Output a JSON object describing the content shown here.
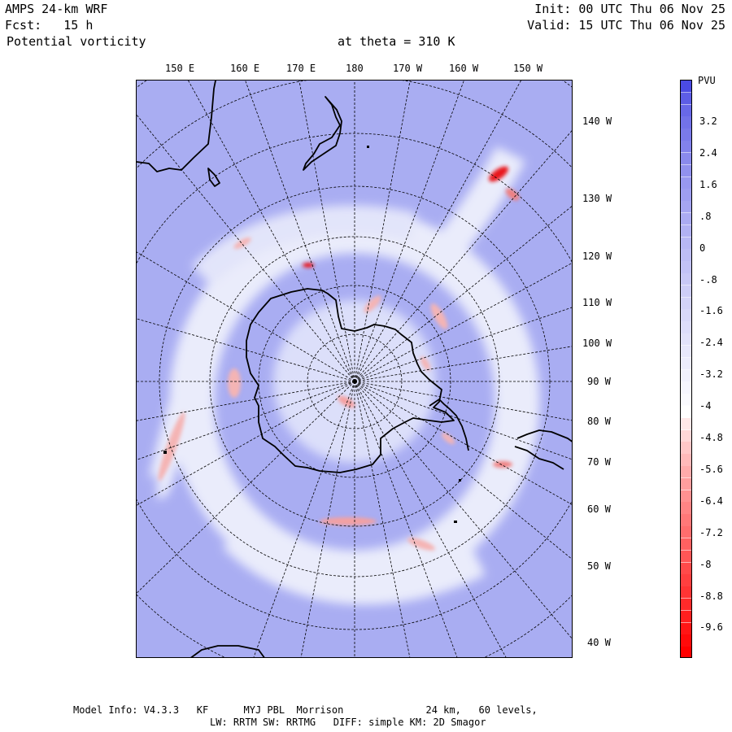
{
  "header": {
    "model": "AMPS 24-km WRF",
    "forecast": "Fcst:   15 h",
    "field": "Potential vorticity",
    "level": "at theta = 310 K",
    "init": "Init: 00 UTC Thu 06 Nov 25",
    "valid": "Valid: 15 UTC Thu 06 Nov 25"
  },
  "map": {
    "top_longitude_labels": [
      "150 E",
      "160 E",
      "170 E",
      "180",
      "170 W",
      "160 W",
      "150 W"
    ],
    "right_longitude_labels": [
      "140 W",
      "130 W",
      "120 W",
      "110 W",
      "100 W",
      "90 W",
      "80 W",
      "70 W",
      "60 W",
      "50 W",
      "40 W"
    ],
    "projection": "polar stereographic, South Pole",
    "colors": {
      "background_field": "#a9adf2",
      "near_zero": "#eef0fc",
      "negative_weak": "#f4b4b4",
      "negative_strong": "#e8191d",
      "coastline": "#000000",
      "grid": "#000000"
    }
  },
  "colorbar": {
    "unit": "PVU",
    "tick_labels": [
      "3.2",
      "2.4",
      "1.6",
      ".8",
      "0",
      "-.8",
      "-1.6",
      "-2.4",
      "-3.2",
      "-4",
      "-4.8",
      "-5.6",
      "-6.4",
      "-7.2",
      "-8",
      "-8.8",
      "-9.6"
    ],
    "top_color": "#4b4be3",
    "mid_color": "#ffffff",
    "bottom_color": "#ff0000"
  },
  "footer": {
    "line1": "Model Info: V4.3.3   KF      MYJ PBL  Morrison              24 km,   60 levels,",
    "line2": "LW: RRTM SW: RRTMG   DIFF: simple KM: 2D Smagor"
  }
}
